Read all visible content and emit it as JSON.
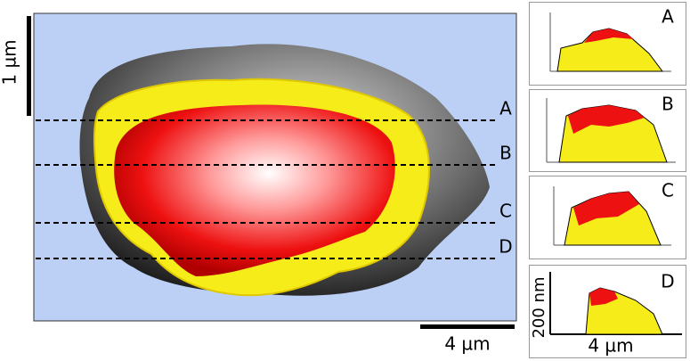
{
  "image": {
    "vertical_scale": "1 µm",
    "horizontal_scale": "4 µm",
    "line_labels": [
      "A",
      "B",
      "C",
      "D"
    ]
  },
  "profiles": [
    {
      "label": "A"
    },
    {
      "label": "B"
    },
    {
      "label": "C"
    },
    {
      "label": "D"
    }
  ],
  "profile_axis": {
    "y_label": "200 nm",
    "x_label": "4 µm"
  }
}
